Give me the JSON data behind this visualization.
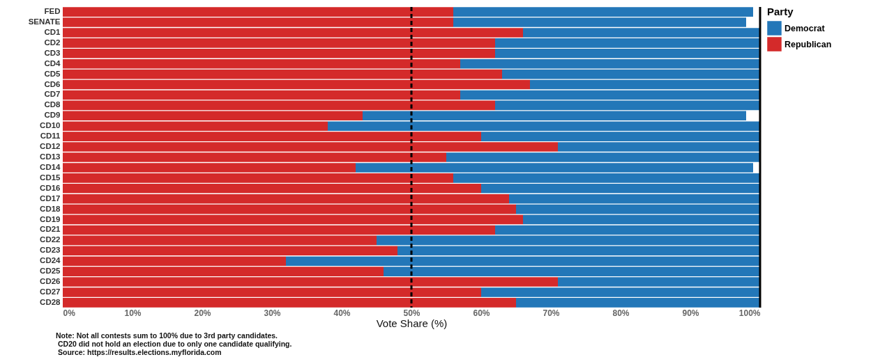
{
  "chart_data": {
    "type": "bar",
    "orientation": "horizontal",
    "stacked": true,
    "categories": [
      "FED",
      "SENATE",
      "CD1",
      "CD2",
      "CD3",
      "CD4",
      "CD5",
      "CD6",
      "CD7",
      "CD8",
      "CD9",
      "CD10",
      "CD11",
      "CD12",
      "CD13",
      "CD14",
      "CD15",
      "CD16",
      "CD17",
      "CD18",
      "CD19",
      "CD21",
      "CD22",
      "CD23",
      "CD24",
      "CD25",
      "CD26",
      "CD27",
      "CD28"
    ],
    "series": [
      {
        "name": "Republican",
        "color": "#d42a2a",
        "values": [
          56,
          56,
          66,
          62,
          62,
          57,
          63,
          67,
          57,
          62,
          43,
          38,
          60,
          71,
          55,
          42,
          56,
          60,
          64,
          65,
          66,
          62,
          45,
          48,
          32,
          46,
          71,
          60,
          65
        ]
      },
      {
        "name": "Democrat",
        "color": "#2377b8",
        "values": [
          43,
          42,
          34,
          38,
          38,
          43,
          37,
          33,
          43,
          38,
          55,
          62,
          40,
          29,
          45,
          57,
          44,
          40,
          36,
          35,
          34,
          38,
          55,
          52,
          68,
          54,
          29,
          40,
          35
        ]
      }
    ],
    "xlim": [
      0,
      100
    ],
    "xticks": [
      {
        "value": 0,
        "label": "0%"
      },
      {
        "value": 10,
        "label": "10%"
      },
      {
        "value": 20,
        "label": "20%"
      },
      {
        "value": 30,
        "label": "30%"
      },
      {
        "value": 40,
        "label": "40%"
      },
      {
        "value": 50,
        "label": "50%"
      },
      {
        "value": 60,
        "label": "60%"
      },
      {
        "value": 70,
        "label": "70%"
      },
      {
        "value": 80,
        "label": "80%"
      },
      {
        "value": 90,
        "label": "90%"
      },
      {
        "value": 100,
        "label": "100%"
      }
    ],
    "xlabel": "Vote Share (%)",
    "legend_title": "Party",
    "legend": "right",
    "grid": false,
    "ref_lines": [
      {
        "axis": "x",
        "value": 50,
        "color": "#000000",
        "line_style": "dashed"
      },
      {
        "axis": "x",
        "value": 100,
        "color": "#000000",
        "line_style": "solid"
      }
    ],
    "annotations": [
      "Note: Not all contests sum to 100% due to 3rd party candidates.",
      "CD20 did not hold an election due to only one candidate qualifying.",
      "Source: https://results.elections.myflorida.com"
    ]
  }
}
